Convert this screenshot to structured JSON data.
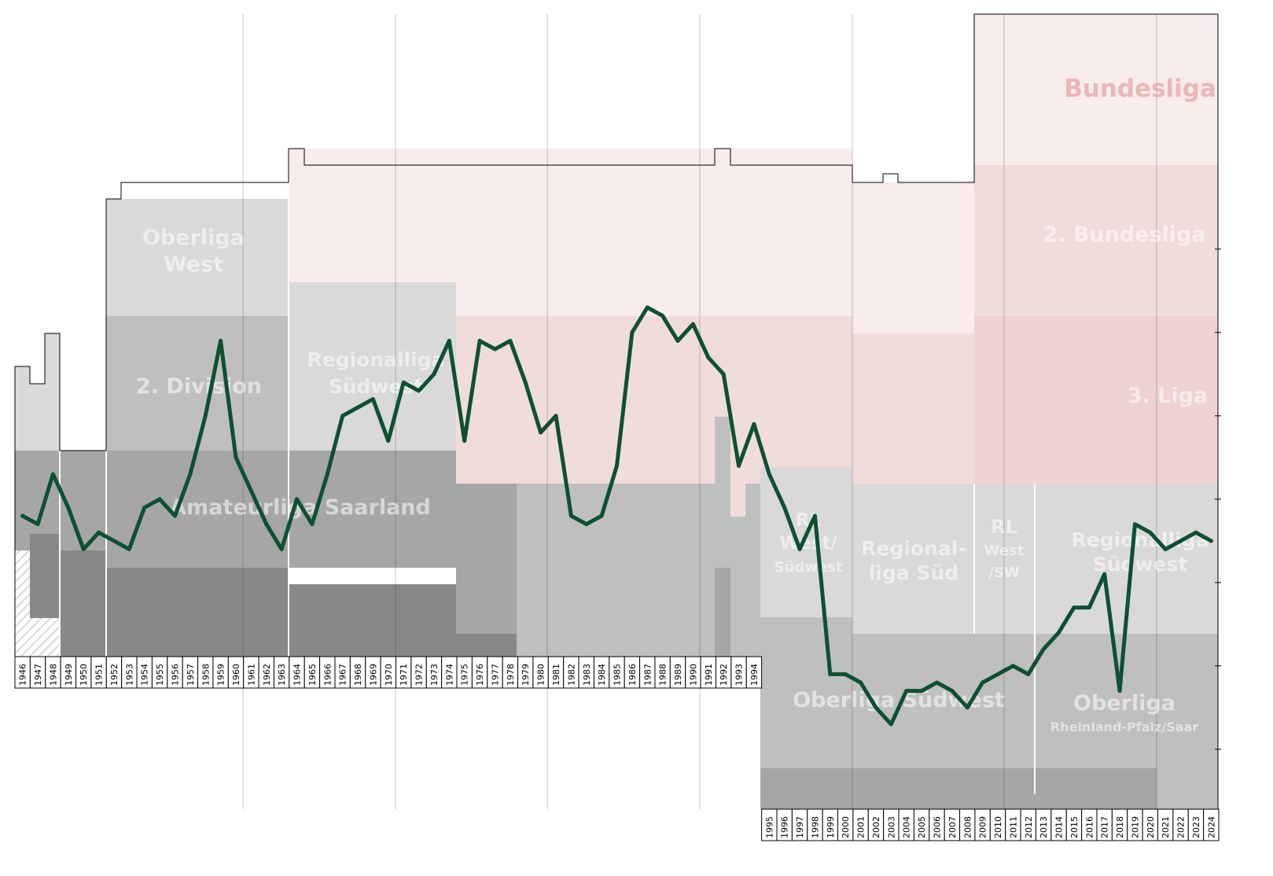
{
  "chart_data": {
    "type": "line",
    "x": [
      1946,
      1947,
      1948,
      1949,
      1950,
      1951,
      1952,
      1953,
      1954,
      1955,
      1956,
      1957,
      1958,
      1959,
      1960,
      1961,
      1962,
      1963,
      1964,
      1965,
      1966,
      1967,
      1968,
      1969,
      1970,
      1971,
      1972,
      1973,
      1974,
      1975,
      1976,
      1977,
      1978,
      1979,
      1980,
      1981,
      1982,
      1983,
      1984,
      1985,
      1986,
      1987,
      1988,
      1989,
      1990,
      1991,
      1992,
      1993,
      1994,
      1995,
      1996,
      1997,
      1998,
      1999,
      2000,
      2001,
      2002,
      2003,
      2004,
      2005,
      2006,
      2007,
      2008,
      2009,
      2010,
      2011,
      2012,
      2013,
      2014,
      2015,
      2016,
      2017,
      2018,
      2019,
      2020,
      2021,
      2022,
      2023,
      2024
    ],
    "rank": [
      42,
      43,
      37,
      41,
      46,
      44,
      45,
      46,
      41,
      40,
      42,
      37,
      30,
      21,
      35,
      39,
      43,
      46,
      40,
      43,
      37,
      30,
      29,
      28,
      33,
      26,
      27,
      25,
      21,
      33,
      21,
      22,
      21,
      26,
      32,
      30,
      42,
      43,
      42,
      36,
      20,
      17,
      18,
      21,
      19,
      23,
      25,
      36,
      31,
      37,
      41,
      46,
      42,
      61,
      61,
      62,
      65,
      67,
      63,
      63,
      62,
      63,
      65,
      62,
      61,
      60,
      61,
      58,
      56,
      53,
      53,
      49,
      63,
      43,
      44,
      46,
      45,
      44,
      45
    ],
    "leagues": [
      {
        "name": "Bundesliga",
        "lines": [
          "Bundesliga"
        ],
        "color": "#e8a6a6"
      },
      {
        "name": "2. Bundesliga",
        "lines": [
          "2. Bundesliga"
        ],
        "color": "#ffffff"
      },
      {
        "name": "3. Liga",
        "lines": [
          "3. Liga"
        ],
        "color": "#ffffff"
      },
      {
        "name": "Oberliga West",
        "lines": [
          "Oberliga",
          "West"
        ],
        "color": "#ffffff"
      },
      {
        "name": "2. Division",
        "lines": [
          "2. Division"
        ],
        "color": "#ffffff"
      },
      {
        "name": "Regionalliga Südwest",
        "lines": [
          "Regionalliga",
          "Südwest"
        ],
        "color": "#ffffff"
      },
      {
        "name": "Amateurliga Saarland",
        "lines": [
          "Amateurliga Saarland"
        ],
        "color": "#ffffff"
      },
      {
        "name": "RL West/Südwest",
        "lines": [
          "RL",
          "West/",
          "Südwest"
        ],
        "color": "#ffffff"
      },
      {
        "name": "Regionalliga Süd",
        "lines": [
          "Regional-",
          "liga Süd"
        ],
        "color": "#ffffff"
      },
      {
        "name": "RL West/SW",
        "lines": [
          "RL",
          "West",
          "/SW"
        ],
        "color": "#ffffff"
      },
      {
        "name": "Regionalliga Südwest",
        "lines": [
          "Regionalliga",
          "Südwest"
        ],
        "color": "#ffffff"
      },
      {
        "name": "Oberliga Südwest",
        "lines": [
          "Oberliga Südwest"
        ],
        "color": "#ffffff"
      },
      {
        "name": "Oberliga Rheinland-Pfalz/Saar",
        "lines": [
          "Oberliga",
          "Rheinland-Pfalz/Saar"
        ],
        "color": "#ffffff"
      }
    ],
    "line_color": "#0d5032",
    "tier_colors": {
      "tier1": "#f8ecec",
      "tier2": "#f1dcdc",
      "tier3": "#d9d9d9",
      "tier4": "#bfbfbf",
      "tier5": "#a6a6a6",
      "tier6": "#888888"
    }
  }
}
